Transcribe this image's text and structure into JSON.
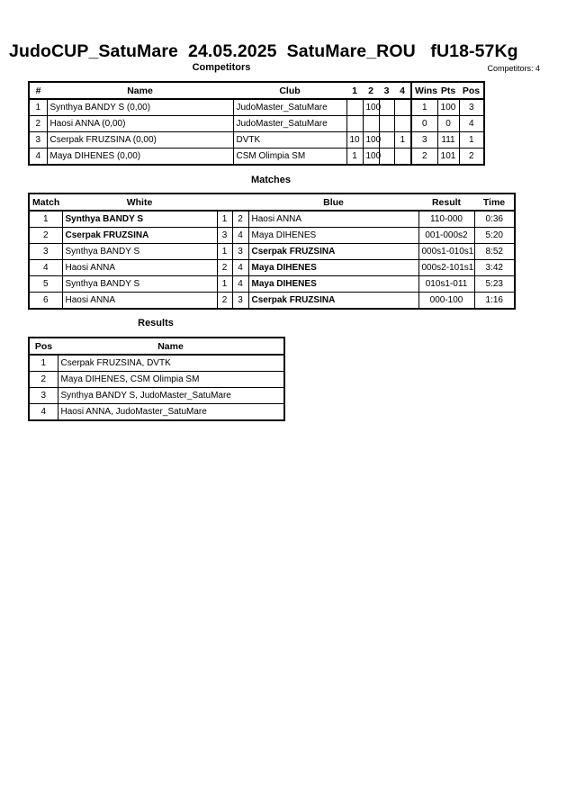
{
  "header": {
    "title": "JudoCUP_SatuMare  24.05.2025  SatuMare_ROU   fU18-57Kg",
    "competitors_label": "Competitors",
    "competitors_count": "Competitors: 4"
  },
  "competitors": {
    "columns": [
      "#",
      "Name",
      "Club",
      "1",
      "2",
      "3",
      "4",
      "Wins",
      "Pts",
      "Pos"
    ],
    "rows": [
      [
        "1",
        "Synthya BANDY S  (0,00)",
        "JudoMaster_SatuMare",
        "",
        "100",
        "",
        "",
        "1",
        "100",
        "3"
      ],
      [
        "2",
        "Haosi ANNA  (0,00)",
        "JudoMaster_SatuMare",
        "",
        "",
        "",
        "",
        "0",
        "0",
        "4"
      ],
      [
        "3",
        "Cserpak FRUZSINA  (0,00)",
        "DVTK",
        "10",
        "100",
        "",
        "1",
        "3",
        "111",
        "1"
      ],
      [
        "4",
        "Maya DIHENES  (0,00)",
        "CSM Olimpia SM",
        "1",
        "100",
        "",
        "",
        "2",
        "101",
        "2"
      ]
    ]
  },
  "matches": {
    "title": "Matches",
    "columns": [
      "Match",
      "White",
      "",
      "",
      "Blue",
      "Result",
      "Time"
    ],
    "rows": [
      {
        "no": "1",
        "white": "Synthya BANDY S",
        "wn": "1",
        "bn": "2",
        "blue": "Haosi ANNA",
        "result": "110-000",
        "time": "0:36",
        "winner": "white"
      },
      {
        "no": "2",
        "white": "Cserpak FRUZSINA",
        "wn": "3",
        "bn": "4",
        "blue": "Maya DIHENES",
        "result": "001-000s2",
        "time": "5:20",
        "winner": "white"
      },
      {
        "no": "3",
        "white": "Synthya BANDY S",
        "wn": "1",
        "bn": "3",
        "blue": "Cserpak FRUZSINA",
        "result": "000s1-010s1",
        "time": "8:52",
        "winner": "blue"
      },
      {
        "no": "4",
        "white": "Haosi ANNA",
        "wn": "2",
        "bn": "4",
        "blue": "Maya DIHENES",
        "result": "000s2-101s1",
        "time": "3:42",
        "winner": "blue"
      },
      {
        "no": "5",
        "white": "Synthya BANDY S",
        "wn": "1",
        "bn": "4",
        "blue": "Maya DIHENES",
        "result": "010s1-011",
        "time": "5:23",
        "winner": "blue"
      },
      {
        "no": "6",
        "white": "Haosi ANNA",
        "wn": "2",
        "bn": "3",
        "blue": "Cserpak FRUZSINA",
        "result": "000-100",
        "time": "1:16",
        "winner": "blue"
      }
    ]
  },
  "results": {
    "title": "Results",
    "columns": [
      "Pos",
      "Name"
    ],
    "rows": [
      [
        "1",
        "Cserpak FRUZSINA, DVTK"
      ],
      [
        "2",
        "Maya DIHENES, CSM Olimpia SM"
      ],
      [
        "3",
        "Synthya BANDY S, JudoMaster_SatuMare"
      ],
      [
        "4",
        "Haosi ANNA, JudoMaster_SatuMare"
      ]
    ]
  }
}
